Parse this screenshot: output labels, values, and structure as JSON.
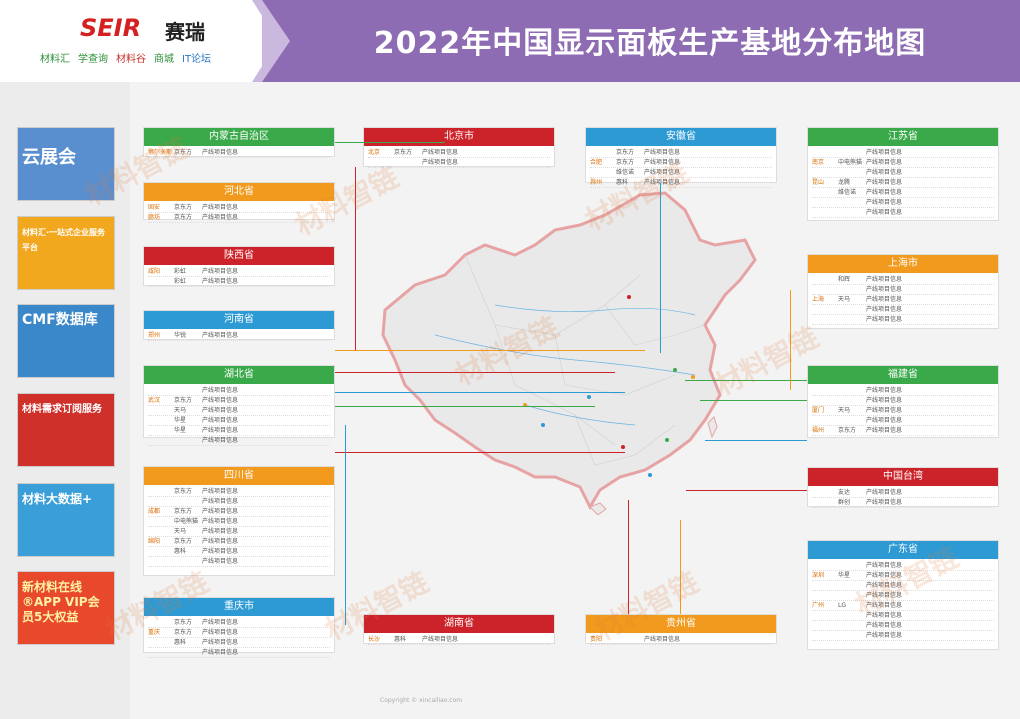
{
  "header": {
    "logo": "SEIR",
    "logo_cn": "赛瑞",
    "title": "2022年中国显示面板生产基地分布地图",
    "partners": [
      "材料汇",
      "学查询",
      "材料谷",
      "商城",
      "IT论坛"
    ]
  },
  "ads": [
    {
      "title": "云展会",
      "sub": "",
      "bg": "#5a8fcf",
      "color": "#ffffff"
    },
    {
      "title": "材料汇·一站式企业服务平台",
      "sub": "",
      "bg": "#f2a81e",
      "color": "#ffffff"
    },
    {
      "title": "CMF数据库",
      "sub": "",
      "bg": "#3a87c9",
      "color": "#ffffff"
    },
    {
      "title": "材料需求订阅服务",
      "sub": "",
      "bg": "#d0302a",
      "color": "#ffffff"
    },
    {
      "title": "材料大数据+",
      "sub": "",
      "bg": "#3a9fd8",
      "color": "#ffffff"
    },
    {
      "title": "新材料在线®APP VIP会员5大权益",
      "sub": "",
      "bg": "#e8482c",
      "color": "#fff2a0"
    }
  ],
  "boxes": [
    {
      "name": "neimenggu",
      "title": "内蒙古自治区",
      "color": "green",
      "rows": [
        [
          "鄂尔多斯",
          "京东方",
          "产线项目信息"
        ]
      ]
    },
    {
      "name": "hubei-north",
      "title": "河北省",
      "color": "orange",
      "rows": [
        [
          "固安",
          "京东方",
          "产线项目信息"
        ],
        [
          "廊坊",
          "京东方",
          "产线项目信息"
        ]
      ]
    },
    {
      "name": "shaanxi",
      "title": "陕西省",
      "color": "red",
      "rows": [
        [
          "咸阳",
          "彩虹",
          "产线项目信息"
        ],
        [
          "",
          "彩虹",
          "产线项目信息"
        ]
      ]
    },
    {
      "name": "henan",
      "title": "河南省",
      "color": "blue",
      "rows": [
        [
          "郑州",
          "华锐",
          "产线项目信息"
        ]
      ]
    },
    {
      "name": "hubei",
      "title": "湖北省",
      "color": "green",
      "rows": [
        [
          "",
          "",
          "产线项目信息"
        ],
        [
          "武汉",
          "京东方",
          "产线项目信息"
        ],
        [
          "",
          "天马",
          "产线项目信息"
        ],
        [
          "",
          "华星",
          "产线项目信息"
        ],
        [
          "",
          "华星",
          "产线项目信息"
        ],
        [
          "",
          "",
          "产线项目信息"
        ]
      ]
    },
    {
      "name": "sichuan",
      "title": "四川省",
      "color": "orange",
      "rows": [
        [
          "",
          "京东方",
          "产线项目信息"
        ],
        [
          "",
          "",
          "产线项目信息"
        ],
        [
          "成都",
          "京东方",
          "产线项目信息"
        ],
        [
          "",
          "中电熊猫",
          "产线项目信息"
        ],
        [
          "",
          "天马",
          "产线项目信息"
        ],
        [
          "绵阳",
          "京东方",
          "产线项目信息"
        ],
        [
          "",
          "惠科",
          "产线项目信息"
        ],
        [
          "",
          "",
          "产线项目信息"
        ]
      ]
    },
    {
      "name": "chongqing",
      "title": "重庆市",
      "color": "blue",
      "rows": [
        [
          "",
          "京东方",
          "产线项目信息"
        ],
        [
          "重庆",
          "京东方",
          "产线项目信息"
        ],
        [
          "",
          "惠科",
          "产线项目信息"
        ],
        [
          "",
          "",
          "产线项目信息"
        ]
      ]
    },
    {
      "name": "beijing",
      "title": "北京市",
      "color": "red",
      "rows": [
        [
          "北京",
          "京东方",
          "产线项目信息"
        ],
        [
          "",
          "",
          "产线项目信息"
        ]
      ]
    },
    {
      "name": "hunan",
      "title": "湖南省",
      "color": "red",
      "rows": [
        [
          "长沙",
          "惠科",
          "产线项目信息"
        ]
      ]
    },
    {
      "name": "anhui",
      "title": "安徽省",
      "color": "blue",
      "rows": [
        [
          "",
          "京东方",
          "产线项目信息"
        ],
        [
          "合肥",
          "京东方",
          "产线项目信息"
        ],
        [
          "",
          "维信诺",
          "产线项目信息"
        ],
        [
          "滁州",
          "惠科",
          "产线项目信息"
        ]
      ]
    },
    {
      "name": "guizhou",
      "title": "贵州省",
      "color": "orange",
      "rows": [
        [
          "贵阳",
          "",
          "产线项目信息"
        ]
      ]
    },
    {
      "name": "jiangsu",
      "title": "江苏省",
      "color": "green",
      "rows": [
        [
          "",
          "",
          "产线项目信息"
        ],
        [
          "南京",
          "中电熊猫",
          "产线项目信息"
        ],
        [
          "",
          "",
          "产线项目信息"
        ],
        [
          "昆山",
          "龙腾",
          "产线项目信息"
        ],
        [
          "",
          "维信诺",
          "产线项目信息"
        ],
        [
          "",
          "",
          "产线项目信息"
        ],
        [
          "",
          "",
          "产线项目信息"
        ]
      ]
    },
    {
      "name": "shanghai",
      "title": "上海市",
      "color": "orange",
      "rows": [
        [
          "",
          "和辉",
          "产线项目信息"
        ],
        [
          "",
          "",
          "产线项目信息"
        ],
        [
          "上海",
          "天马",
          "产线项目信息"
        ],
        [
          "",
          "",
          "产线项目信息"
        ],
        [
          "",
          "",
          "产线项目信息"
        ]
      ]
    },
    {
      "name": "fujian",
      "title": "福建省",
      "color": "green",
      "rows": [
        [
          "",
          "",
          "产线项目信息"
        ],
        [
          "",
          "",
          "产线项目信息"
        ],
        [
          "厦门",
          "天马",
          "产线项目信息"
        ],
        [
          "",
          "",
          "产线项目信息"
        ],
        [
          "福州",
          "京东方",
          "产线项目信息"
        ]
      ]
    },
    {
      "name": "taiwan",
      "title": "中国台湾",
      "color": "red",
      "rows": [
        [
          "",
          "友达",
          "产线项目信息"
        ],
        [
          "",
          "群创",
          "产线项目信息"
        ]
      ]
    },
    {
      "name": "guangdong",
      "title": "广东省",
      "color": "blue",
      "rows": [
        [
          "",
          "",
          "产线项目信息"
        ],
        [
          "深圳",
          "华星",
          "产线项目信息"
        ],
        [
          "",
          "",
          "产线项目信息"
        ],
        [
          "",
          "",
          "产线项目信息"
        ],
        [
          "广州",
          "LG",
          "产线项目信息"
        ],
        [
          "",
          "",
          "产线项目信息"
        ],
        [
          "",
          "",
          "产线项目信息"
        ],
        [
          "",
          "",
          "产线项目信息"
        ]
      ]
    }
  ],
  "watermark": "材料智链",
  "copyright": "Copyright © xincailiao.com"
}
